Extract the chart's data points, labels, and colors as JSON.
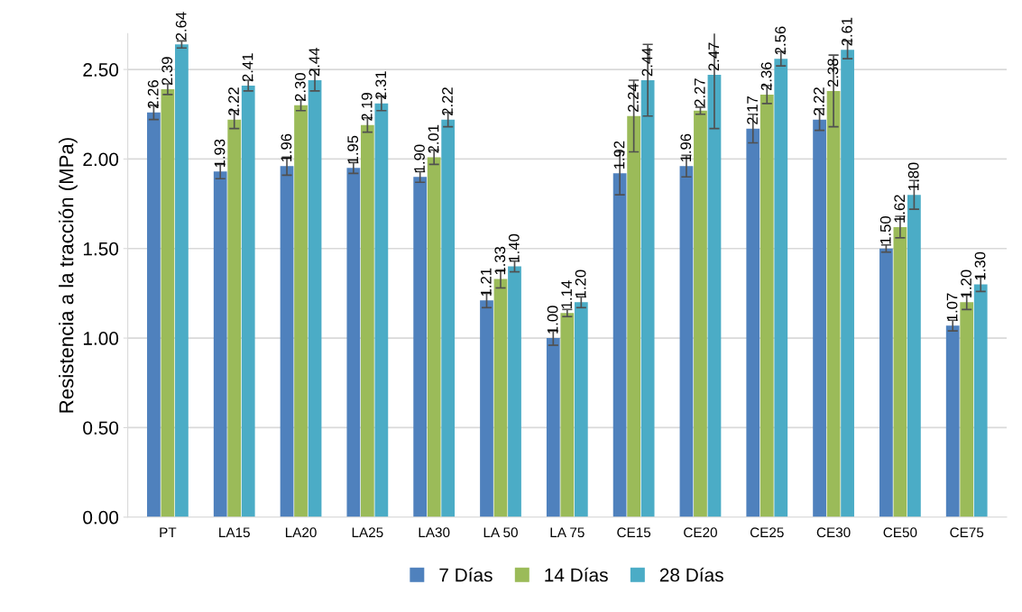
{
  "chart_data": {
    "type": "bar",
    "ylabel": "Resistencia a la tracción (MPa)",
    "categories": [
      "PT",
      "LA15",
      "LA20",
      "LA25",
      "LA30",
      "LA 50",
      "LA 75",
      "CE15",
      "CE20",
      "CE25",
      "CE30",
      "CE50",
      "CE75"
    ],
    "series": [
      {
        "name": "7 Días",
        "color": "#4f81bd",
        "values": [
          2.26,
          1.93,
          1.96,
          1.95,
          1.9,
          1.21,
          1.0,
          1.92,
          1.96,
          2.17,
          2.22,
          1.5,
          1.07
        ],
        "value_labels": [
          "2.26",
          "1.93",
          "1.96",
          "1.95",
          "1.90",
          "1.21",
          "1.00",
          "1.92",
          "1.96",
          "2.17",
          "2.22",
          "1.50",
          "1.07"
        ],
        "errors": [
          0.04,
          0.04,
          0.05,
          0.03,
          0.03,
          0.04,
          0.04,
          0.12,
          0.06,
          0.08,
          0.06,
          0.02,
          0.03
        ]
      },
      {
        "name": "14 Días",
        "color": "#9bbb59",
        "values": [
          2.39,
          2.22,
          2.3,
          2.19,
          2.01,
          1.33,
          1.14,
          2.24,
          2.27,
          2.36,
          2.38,
          1.62,
          1.2
        ],
        "value_labels": [
          "2.39",
          "2.22",
          "2.30",
          "2.19",
          "2.01",
          "1.33",
          "1.14",
          "2.24",
          "2.27",
          "2.36",
          "2.38",
          "1.62",
          "1.20"
        ],
        "errors": [
          0.03,
          0.05,
          0.03,
          0.04,
          0.04,
          0.05,
          0.02,
          0.2,
          0.02,
          0.05,
          0.2,
          0.06,
          0.04
        ]
      },
      {
        "name": "28 Días",
        "color": "#4bacc6",
        "values": [
          2.64,
          2.41,
          2.44,
          2.31,
          2.22,
          1.4,
          1.2,
          2.44,
          2.47,
          2.56,
          2.61,
          1.8,
          1.3
        ],
        "value_labels": [
          "2.64",
          "2.41",
          "2.44",
          "2.31",
          "2.22",
          "1.40",
          "1.20",
          "2.44",
          "2.47",
          "2.56",
          "2.61",
          "1.80",
          "1.30"
        ],
        "errors": [
          0.02,
          0.03,
          0.06,
          0.04,
          0.04,
          0.03,
          0.03,
          0.2,
          0.3,
          0.04,
          0.05,
          0.08,
          0.04
        ]
      }
    ],
    "ylim": [
      0,
      2.7
    ],
    "yticks": [
      {
        "value": 0,
        "label": "0.00"
      },
      {
        "value": 0.5,
        "label": "0.50"
      },
      {
        "value": 1,
        "label": "1.00"
      },
      {
        "value": 1.5,
        "label": "1.50"
      },
      {
        "value": 2,
        "label": "2.00"
      },
      {
        "value": 2.5,
        "label": "2.50"
      }
    ],
    "grid": "y",
    "legend": "bottom"
  }
}
